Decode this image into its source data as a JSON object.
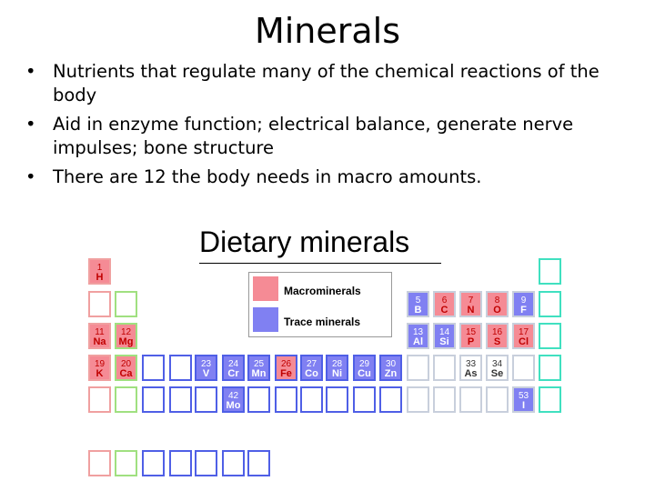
{
  "slide": {
    "title": "Minerals",
    "bullets": [
      "Nutrients that regulate many of the chemical reactions of the body",
      "Aid in enzyme function; electrical balance, generate nerve impulses; bone structure",
      "There are 12 the body needs in macro amounts."
    ]
  },
  "figure": {
    "title": "Dietary  minerals",
    "legend": {
      "macro_label": "Macrominerals",
      "trace_label": "Trace  minerals"
    },
    "colors": {
      "macro": "#f58b95",
      "trace": "#8080f2"
    },
    "elements": [
      {
        "num": "1",
        "sym": "H",
        "type": "macro"
      },
      {
        "num": "5",
        "sym": "B",
        "type": "trace"
      },
      {
        "num": "6",
        "sym": "C",
        "type": "macro"
      },
      {
        "num": "7",
        "sym": "N",
        "type": "macro"
      },
      {
        "num": "8",
        "sym": "O",
        "type": "macro"
      },
      {
        "num": "9",
        "sym": "F",
        "type": "trace"
      },
      {
        "num": "11",
        "sym": "Na",
        "type": "macro"
      },
      {
        "num": "12",
        "sym": "Mg",
        "type": "macro"
      },
      {
        "num": "13",
        "sym": "Al",
        "type": "trace"
      },
      {
        "num": "14",
        "sym": "Si",
        "type": "trace"
      },
      {
        "num": "15",
        "sym": "P",
        "type": "macro"
      },
      {
        "num": "16",
        "sym": "S",
        "type": "macro"
      },
      {
        "num": "17",
        "sym": "Cl",
        "type": "macro"
      },
      {
        "num": "19",
        "sym": "K",
        "type": "macro"
      },
      {
        "num": "20",
        "sym": "Ca",
        "type": "macro"
      },
      {
        "num": "23",
        "sym": "V",
        "type": "trace"
      },
      {
        "num": "24",
        "sym": "Cr",
        "type": "trace"
      },
      {
        "num": "25",
        "sym": "Mn",
        "type": "trace"
      },
      {
        "num": "26",
        "sym": "Fe",
        "type": "macro"
      },
      {
        "num": "27",
        "sym": "Co",
        "type": "trace"
      },
      {
        "num": "28",
        "sym": "Ni",
        "type": "trace"
      },
      {
        "num": "29",
        "sym": "Cu",
        "type": "trace"
      },
      {
        "num": "30",
        "sym": "Zn",
        "type": "trace"
      },
      {
        "num": "33",
        "sym": "As",
        "type": "none"
      },
      {
        "num": "34",
        "sym": "Se",
        "type": "none"
      },
      {
        "num": "42",
        "sym": "Mo",
        "type": "trace"
      },
      {
        "num": "53",
        "sym": "I",
        "type": "trace"
      }
    ]
  }
}
